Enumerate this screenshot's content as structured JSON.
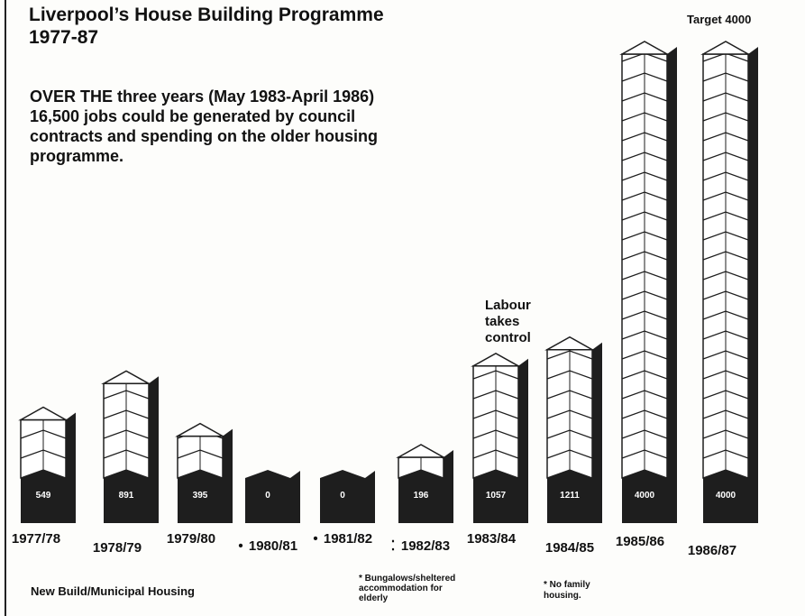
{
  "chart_data": {
    "type": "bar",
    "title": "Liverpool’s House Building Programme 1977-87",
    "subtitle": "OVER THE three years (May 1983-April 1986) 16,500 jobs could be generated by council contracts and spending on the older housing programme.",
    "categories": [
      "1977/78",
      "1978/79",
      "1979/80",
      "1980/81",
      "1981/82",
      "1982/83",
      "1983/84",
      "1984/85",
      "1985/86",
      "1986/87"
    ],
    "values": [
      549,
      891,
      395,
      0,
      0,
      196,
      1057,
      1211,
      4000,
      4000
    ],
    "category_markers": [
      null,
      null,
      null,
      "•",
      "•",
      "⁚",
      null,
      null,
      null,
      null
    ],
    "color": "#1e1e1e",
    "annotations": [
      "Labour takes control",
      "Target 4000"
    ],
    "legend": "New Build/Municipal Housing",
    "footnotes": [
      "* Bungalows/sheltered accommodation for elderly",
      "* No family housing."
    ]
  }
}
